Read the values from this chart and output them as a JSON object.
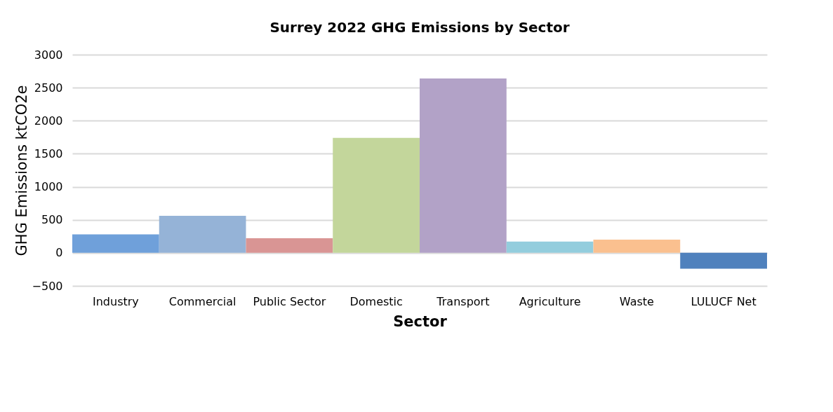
{
  "chart_data": {
    "type": "bar",
    "title": "Surrey 2022 GHG Emissions by Sector",
    "xlabel": "Sector",
    "ylabel": "GHG Emissions ktCO2e",
    "categories": [
      "Industry",
      "Commercial",
      "Public Sector",
      "Domestic",
      "Transport",
      "Agriculture",
      "Waste",
      "LULUCF Net"
    ],
    "values": [
      280,
      560,
      220,
      1740,
      2640,
      170,
      200,
      -240
    ],
    "colors": [
      "#6fa0da",
      "#95b3d7",
      "#d99594",
      "#c3d69b",
      "#b2a2c7",
      "#93cddd",
      "#fac08f",
      "#4f81bd"
    ],
    "ylim": [
      -500,
      3000
    ],
    "yticks": [
      -500,
      0,
      500,
      1000,
      1500,
      2000,
      2500,
      3000
    ],
    "grid": "y"
  }
}
